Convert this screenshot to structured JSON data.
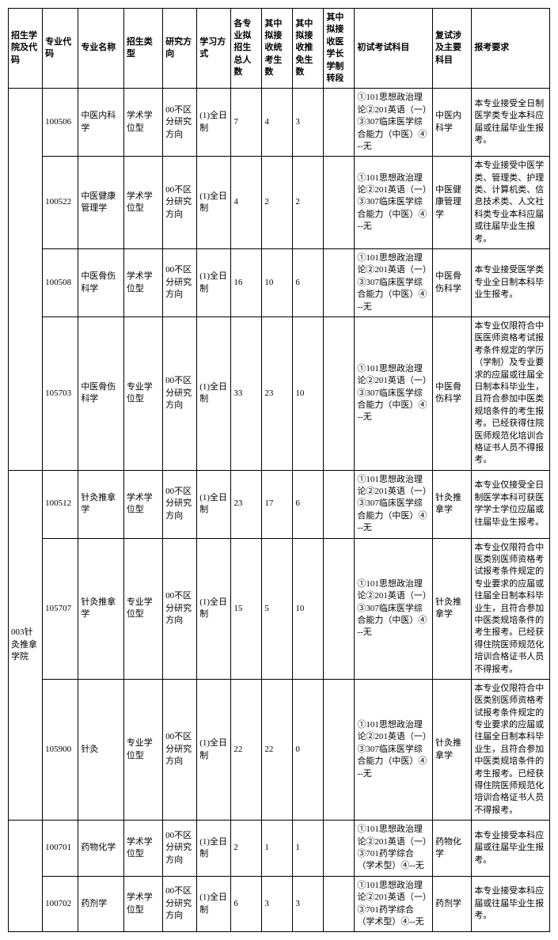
{
  "headers": [
    "招生学院及代码",
    "专业代码",
    "专业名称",
    "招生类型",
    "研究方向",
    "学习方式",
    "各专业拟招生总人数",
    "其中拟接收统考生数",
    "其中拟接收推免生数",
    "其中拟接收医学长学制转段",
    "初试考试科目",
    "复试涉及主要科目",
    "报考要求"
  ],
  "groups": [
    {
      "label": "",
      "rows": [
        {
          "code": "100506",
          "name": "中医内科学",
          "type": "学术学位型",
          "direction": "00不区分研究方向",
          "mode": "(1)全日制",
          "total": "7",
          "tongkao": "4",
          "tuimian": "3",
          "zhuanduan": "",
          "chushi": "①101思想政治理论②201英语（一）③307临床医学综合能力（中医）④--无",
          "fushi": "中医内科学",
          "req": "本专业接受全日制医学类专业本科应届或往届毕业生报考。"
        },
        {
          "code": "100522",
          "name": "中医健康管理学",
          "type": "学术学位型",
          "direction": "00不区分研究方向",
          "mode": "(1)全日制",
          "total": "4",
          "tongkao": "2",
          "tuimian": "2",
          "zhuanduan": "",
          "chushi": "①101思想政治理论②201英语（一）③307临床医学综合能力（中医）④--无",
          "fushi": "中医健康管理学",
          "req": "本专业接受中医学类、管理类、护理类、计算机类、信息技术类、人文社科类专业本科应届或往届毕业生报考。"
        },
        {
          "code": "100508",
          "name": "中医骨伤科学",
          "type": "学术学位型",
          "direction": "00不区分研究方向",
          "mode": "(1)全日制",
          "total": "16",
          "tongkao": "10",
          "tuimian": "6",
          "zhuanduan": "",
          "chushi": "①101思想政治理论②201英语（一）③307临床医学综合能力（中医）④--无",
          "fushi": "中医骨伤科学",
          "req": "本专业接受医学类专业全日制本科毕业生报考。"
        },
        {
          "code": "105703",
          "name": "中医骨伤科学",
          "type": "专业学位型",
          "direction": "00不区分研究方向",
          "mode": "(1)全日制",
          "total": "33",
          "tongkao": "23",
          "tuimian": "10",
          "zhuanduan": "",
          "chushi": "①101思想政治理论②201英语（一）③307临床医学综合能力（中医）④--无",
          "fushi": "中医骨伤科学",
          "req": "本专业仅限符合中医医师资格考试报考条件规定的学历（学制）及专业要求的应届或往届全日制本科毕业生，且符合参加中医类规培条件的考生报考。已经获得住院医师规范化培训合格证书人员不得报考。"
        }
      ]
    },
    {
      "label": "003针灸推拿学院",
      "rows": [
        {
          "code": "100512",
          "name": "针灸推拿学",
          "type": "学术学位型",
          "direction": "00不区分研究方向",
          "mode": "(1)全日制",
          "total": "23",
          "tongkao": "17",
          "tuimian": "6",
          "zhuanduan": "",
          "chushi": "①101思想政治理论②201英语（一）③307临床医学综合能力（中医）④--无",
          "fushi": "针灸推拿学",
          "req": "本专业仅接受全日制医学本科可获医学学士学位应届或往届毕业生报考。"
        },
        {
          "code": "105707",
          "name": "针灸推拿学",
          "type": "专业学位型",
          "direction": "00不区分研究方向",
          "mode": "(1)全日制",
          "total": "15",
          "tongkao": "5",
          "tuimian": "10",
          "zhuanduan": "",
          "chushi": "①101思想政治理论②201英语（一）③307临床医学综合能力（中医）④--无",
          "fushi": "针灸推拿学",
          "req": "本专业仅限符合中医类别医师资格考试报考条件规定的专业要求的应届或往届全日制本科毕业生，且符合参加中医类规培条件的考生报考。已经获得住院医师规范化培训合格证书人员不得报考。"
        },
        {
          "code": "105900",
          "name": "针灸",
          "type": "专业学位型",
          "direction": "00不区分研究方向",
          "mode": "(1)全日制",
          "total": "22",
          "tongkao": "22",
          "tuimian": "0",
          "zhuanduan": "",
          "chushi": "①101思想政治理论②201英语（一）③307临床医学综合能力（中医）④--无",
          "fushi": "针灸推拿学",
          "req": "本专业仅限符合中医类别医师资格考试报考条件规定的专业要求的应届或往届全日制本科毕业生，且符合参加中医类规培条件的考生报考。已经获得住院医师规范化培训合格证书人员不得报考。"
        }
      ]
    },
    {
      "label": "",
      "rows": [
        {
          "code": "100701",
          "name": "药物化学",
          "type": "学术学位型",
          "direction": "00不区分研究方向",
          "mode": "(1)全日制",
          "total": "2",
          "tongkao": "1",
          "tuimian": "1",
          "zhuanduan": "",
          "chushi": "①101思想政治理论②201英语（一）③701药学综合（学术型）④--无",
          "fushi": "药物化学",
          "req": "本专业接受本科应届或往届毕业生报考。"
        },
        {
          "code": "100702",
          "name": "药剂学",
          "type": "学术学位型",
          "direction": "00不区分研究方向",
          "mode": "(1)全日制",
          "total": "6",
          "tongkao": "3",
          "tuimian": "3",
          "zhuanduan": "",
          "chushi": "①101思想政治理论②201英语（一）③701药学综合（学术型）④--无",
          "fushi": "药剂学",
          "req": "本专业接受本科应届或往届毕业生报考。"
        }
      ]
    }
  ]
}
